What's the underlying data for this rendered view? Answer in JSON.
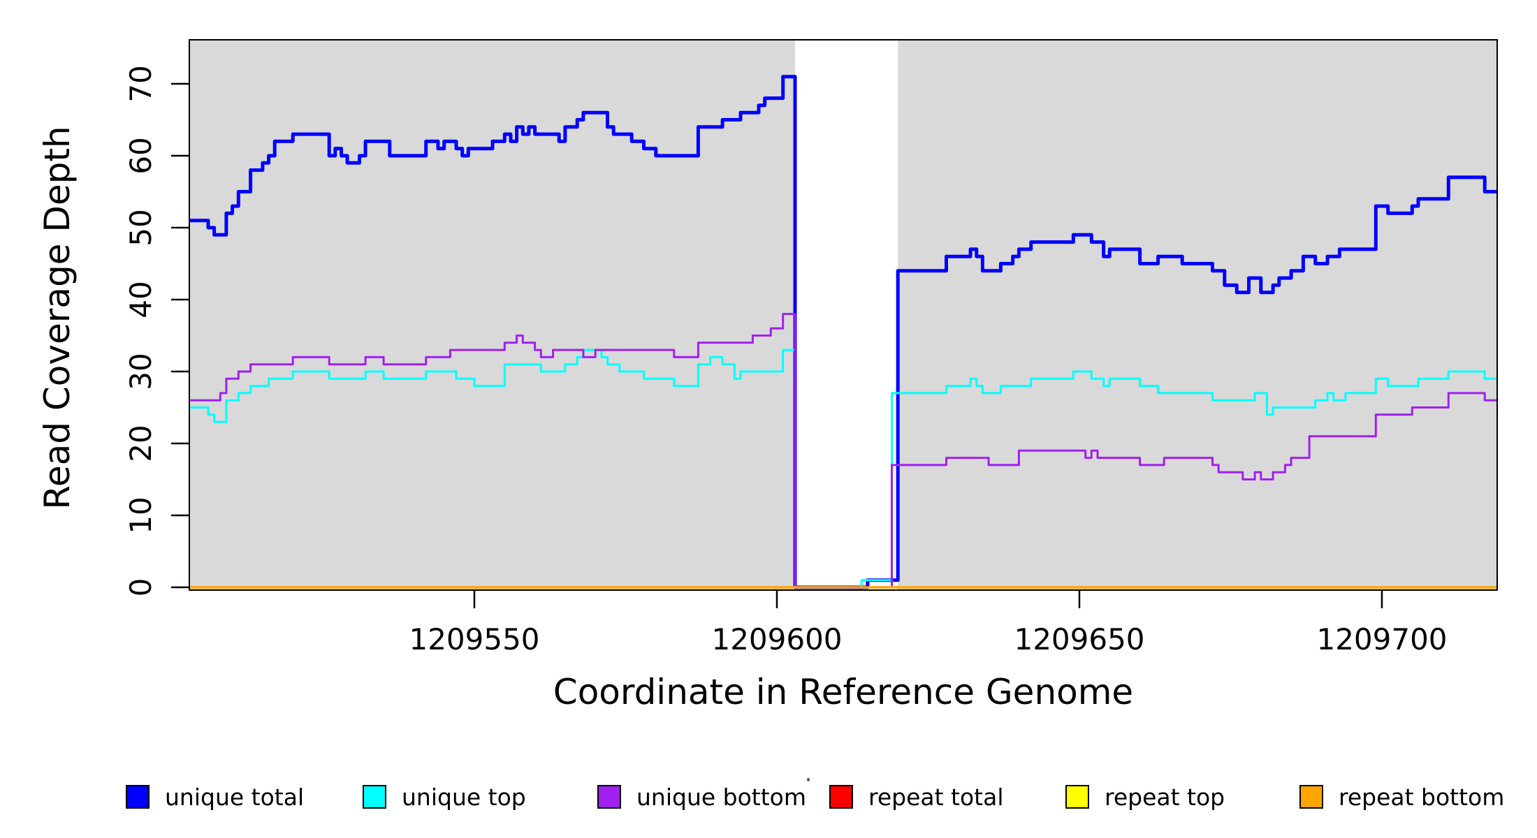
{
  "chart_data": {
    "type": "line",
    "subtype": "step-post-coverage-plot",
    "title": "",
    "xlabel": "Coordinate in Reference Genome",
    "ylabel": "Read Coverage Depth",
    "x_start": 1209503,
    "x_step": 1,
    "n_points": 216,
    "xlim": [
      1209503,
      1209719
    ],
    "ylim": [
      0,
      76
    ],
    "x_ticks": [
      1209550,
      1209600,
      1209650,
      1209700
    ],
    "y_ticks": [
      0,
      10,
      20,
      30,
      40,
      50,
      60,
      70
    ],
    "grid": "off",
    "plot_bg_color": "#D9D9D9",
    "gap_region": {
      "start": 1209603,
      "end": 1209620,
      "fill": "#FFFFFF"
    },
    "legend_position": "bottom",
    "series": [
      {
        "name": "unique total",
        "color": "#0000FF",
        "width": 5,
        "values": [
          51,
          51,
          51,
          50,
          49,
          49,
          52,
          53,
          55,
          55,
          58,
          58,
          59,
          60,
          62,
          62,
          62,
          63,
          63,
          63,
          63,
          63,
          63,
          60,
          61,
          60,
          59,
          59,
          60,
          62,
          62,
          62,
          62,
          60,
          60,
          60,
          60,
          60,
          60,
          62,
          62,
          61,
          62,
          62,
          61,
          60,
          61,
          61,
          61,
          61,
          62,
          62,
          63,
          62,
          64,
          63,
          64,
          63,
          63,
          63,
          63,
          62,
          64,
          64,
          65,
          66,
          66,
          66,
          66,
          64,
          63,
          63,
          63,
          62,
          62,
          61,
          61,
          60,
          60,
          60,
          60,
          60,
          60,
          60,
          64,
          64,
          64,
          64,
          65,
          65,
          65,
          66,
          66,
          66,
          67,
          68,
          68,
          68,
          71,
          71,
          0,
          0,
          0,
          0,
          0,
          0,
          0,
          0,
          0,
          0,
          0,
          0,
          1,
          1,
          1,
          1,
          1,
          44,
          44,
          44,
          44,
          44,
          44,
          44,
          44,
          46,
          46,
          46,
          46,
          47,
          46,
          44,
          44,
          44,
          45,
          45,
          46,
          47,
          47,
          48,
          48,
          48,
          48,
          48,
          48,
          48,
          49,
          49,
          49,
          48,
          48,
          46,
          47,
          47,
          47,
          47,
          47,
          45,
          45,
          45,
          46,
          46,
          46,
          46,
          45,
          45,
          45,
          45,
          45,
          44,
          44,
          42,
          42,
          41,
          41,
          43,
          43,
          41,
          41,
          42,
          43,
          43,
          44,
          44,
          46,
          46,
          45,
          45,
          46,
          46,
          47,
          47,
          47,
          47,
          47,
          47,
          53,
          53,
          52,
          52,
          52,
          52,
          53,
          54,
          54,
          54,
          54,
          54,
          57,
          57,
          57,
          57,
          57,
          57,
          55,
          55
        ]
      },
      {
        "name": "unique top",
        "color": "#00FFFF",
        "width": 3,
        "values": [
          25,
          25,
          25,
          24,
          23,
          23,
          26,
          26,
          27,
          27,
          28,
          28,
          28,
          29,
          29,
          29,
          29,
          30,
          30,
          30,
          30,
          30,
          30,
          29,
          29,
          29,
          29,
          29,
          29,
          30,
          30,
          30,
          29,
          29,
          29,
          29,
          29,
          29,
          29,
          30,
          30,
          30,
          30,
          30,
          29,
          29,
          29,
          28,
          28,
          28,
          28,
          28,
          31,
          31,
          31,
          31,
          31,
          31,
          30,
          30,
          30,
          30,
          31,
          31,
          32,
          33,
          33,
          33,
          32,
          31,
          31,
          30,
          30,
          30,
          30,
          29,
          29,
          29,
          29,
          29,
          28,
          28,
          28,
          28,
          31,
          31,
          32,
          32,
          31,
          31,
          29,
          30,
          30,
          30,
          30,
          30,
          30,
          30,
          33,
          33,
          0,
          0,
          0,
          0,
          0,
          0,
          0,
          0,
          0,
          0,
          0,
          1,
          1,
          1,
          1,
          1,
          27,
          27,
          27,
          27,
          27,
          27,
          27,
          27,
          27,
          28,
          28,
          28,
          28,
          29,
          28,
          27,
          27,
          27,
          28,
          28,
          28,
          28,
          28,
          29,
          29,
          29,
          29,
          29,
          29,
          29,
          30,
          30,
          30,
          29,
          29,
          28,
          29,
          29,
          29,
          29,
          29,
          28,
          28,
          28,
          27,
          27,
          27,
          27,
          27,
          27,
          27,
          27,
          27,
          26,
          26,
          26,
          26,
          26,
          26,
          26,
          27,
          27,
          24,
          25,
          25,
          25,
          25,
          25,
          25,
          25,
          26,
          26,
          27,
          26,
          26,
          27,
          27,
          27,
          27,
          27,
          29,
          29,
          28,
          28,
          28,
          28,
          28,
          29,
          29,
          29,
          29,
          29,
          30,
          30,
          30,
          30,
          30,
          30,
          29,
          29
        ]
      },
      {
        "name": "unique bottom",
        "color": "#A020F0",
        "width": 3,
        "values": [
          26,
          26,
          26,
          26,
          26,
          27,
          29,
          29,
          30,
          30,
          31,
          31,
          31,
          31,
          31,
          31,
          31,
          32,
          32,
          32,
          32,
          32,
          32,
          31,
          31,
          31,
          31,
          31,
          31,
          32,
          32,
          32,
          31,
          31,
          31,
          31,
          31,
          31,
          31,
          32,
          32,
          32,
          32,
          33,
          33,
          33,
          33,
          33,
          33,
          33,
          33,
          33,
          34,
          34,
          35,
          34,
          34,
          33,
          32,
          32,
          33,
          33,
          33,
          33,
          33,
          32,
          32,
          33,
          33,
          33,
          33,
          33,
          33,
          33,
          33,
          33,
          33,
          33,
          33,
          33,
          32,
          32,
          32,
          32,
          34,
          34,
          34,
          34,
          34,
          34,
          34,
          34,
          34,
          35,
          35,
          35,
          36,
          36,
          38,
          38,
          0,
          0,
          0,
          0,
          0,
          0,
          0,
          0,
          0,
          0,
          0,
          0,
          0,
          0,
          0,
          0,
          17,
          17,
          17,
          17,
          17,
          17,
          17,
          17,
          17,
          18,
          18,
          18,
          18,
          18,
          18,
          18,
          17,
          17,
          17,
          17,
          17,
          19,
          19,
          19,
          19,
          19,
          19,
          19,
          19,
          19,
          19,
          19,
          18,
          19,
          18,
          18,
          18,
          18,
          18,
          18,
          18,
          17,
          17,
          17,
          17,
          18,
          18,
          18,
          18,
          18,
          18,
          18,
          18,
          17,
          16,
          16,
          16,
          16,
          15,
          15,
          16,
          15,
          15,
          16,
          16,
          17,
          18,
          18,
          18,
          21,
          21,
          21,
          21,
          21,
          21,
          21,
          21,
          21,
          21,
          21,
          24,
          24,
          24,
          24,
          24,
          24,
          25,
          25,
          25,
          25,
          25,
          25,
          27,
          27,
          27,
          27,
          27,
          27,
          26,
          26
        ]
      },
      {
        "name": "repeat total",
        "color": "#FF0000",
        "width": 2.5,
        "constant": 0
      },
      {
        "name": "repeat top",
        "color": "#FFFF00",
        "width": 2.5,
        "constant": 0
      },
      {
        "name": "repeat bottom",
        "color": "#FFA500",
        "width": 3.5,
        "constant": 0
      }
    ],
    "legend": [
      {
        "label": "unique total",
        "color": "#0000FF"
      },
      {
        "label": "unique top",
        "color": "#00FFFF"
      },
      {
        "label": "unique bottom",
        "color": "#A020F0"
      },
      {
        "label": "repeat total",
        "color": "#FF0000"
      },
      {
        "label": "repeat top",
        "color": "#FFFF00"
      },
      {
        "label": "repeat bottom",
        "color": "#FFA500"
      }
    ]
  }
}
